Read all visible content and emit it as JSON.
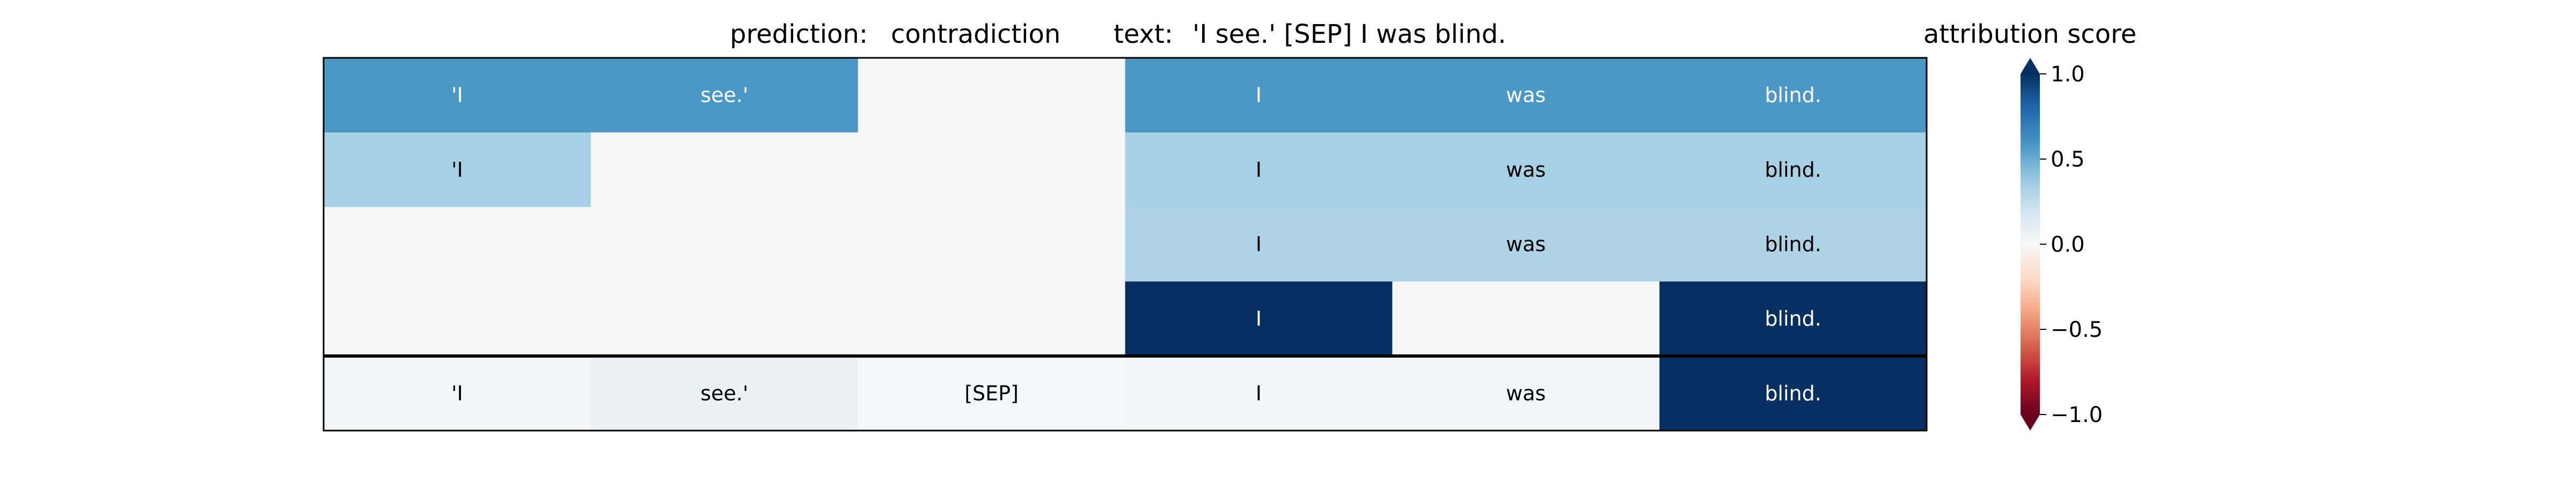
{
  "chart_data": {
    "type": "heatmap",
    "title": {
      "prediction_label": "prediction:",
      "prediction_value": "contradiction",
      "text_label": "text:",
      "text_value": "'I see.' [SEP] I was blind."
    },
    "columns": 6,
    "rows": [
      {
        "tokens": [
          "'I",
          "see.'",
          "",
          "I",
          "was",
          "blind."
        ],
        "scores": [
          0.58,
          0.58,
          0.0,
          0.58,
          0.58,
          0.58
        ]
      },
      {
        "tokens": [
          "'I",
          "",
          "",
          "I",
          "was",
          "blind."
        ],
        "scores": [
          0.33,
          0.0,
          0.0,
          0.33,
          0.33,
          0.33
        ]
      },
      {
        "tokens": [
          "",
          "",
          "",
          "I",
          "was",
          "blind."
        ],
        "scores": [
          0.0,
          0.0,
          0.0,
          0.31,
          0.31,
          0.31
        ]
      },
      {
        "tokens": [
          "",
          "",
          "",
          "I",
          "",
          "blind."
        ],
        "scores": [
          0.0,
          0.0,
          0.0,
          1.0,
          0.0,
          1.0
        ]
      },
      {
        "tokens": [
          "'I",
          "see.'",
          "[SEP]",
          "I",
          "was",
          "blind."
        ],
        "scores": [
          0.02,
          0.07,
          0.01,
          0.02,
          0.02,
          1.0
        ]
      }
    ],
    "separator_after_row": 4,
    "colorbar": {
      "label": "attribution score",
      "range": [
        -1.0,
        1.0
      ],
      "ticks": [
        "1.0",
        "0.5",
        "0.0",
        "−0.5",
        "−1.0"
      ],
      "tick_values": [
        1.0,
        0.5,
        0.0,
        -0.5,
        -1.0
      ],
      "colormap": "RdBu",
      "extend": "both"
    }
  }
}
